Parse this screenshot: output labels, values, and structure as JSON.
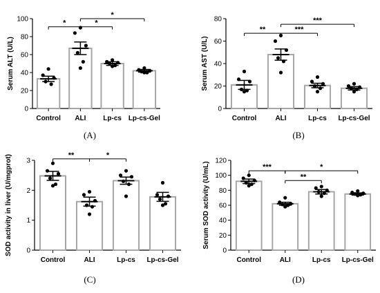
{
  "chart_data": [
    {
      "type": "bar",
      "panel_label": "(A)",
      "ylabel": "Serum ALT (U/L)",
      "ylim": [
        0,
        100
      ],
      "yticks": [
        0,
        20,
        40,
        60,
        80,
        100
      ],
      "categories": [
        "Control",
        "ALI",
        "Lp-cs",
        "Lp-cs-Gel"
      ],
      "values": [
        33,
        67,
        50,
        42
      ],
      "errors": [
        3,
        7,
        2,
        1.5
      ],
      "points": [
        [
          44,
          37,
          34,
          30,
          27
        ],
        [
          90,
          84,
          70,
          62,
          52,
          45
        ],
        [
          54,
          52,
          51,
          50,
          48,
          47
        ],
        [
          45,
          43,
          42,
          41,
          40,
          40
        ]
      ],
      "significance": [
        {
          "from": 0,
          "to": 1,
          "label": "*",
          "y": 91
        },
        {
          "from": 1,
          "to": 2,
          "label": "*",
          "y": 91
        },
        {
          "from": 1,
          "to": 3,
          "label": "*",
          "y": 100
        }
      ]
    },
    {
      "type": "bar",
      "panel_label": "(B)",
      "ylabel": "Serum AST (U/L)",
      "ylim": [
        0,
        80
      ],
      "yticks": [
        0,
        20,
        40,
        60,
        80
      ],
      "categories": [
        "Control",
        "ALI",
        "Lp-cs",
        "Lp-cs-Gel"
      ],
      "values": [
        21,
        48,
        20.5,
        18
      ],
      "errors": [
        4,
        5,
        2,
        1.5
      ],
      "points": [
        [
          33,
          26,
          24,
          17,
          16,
          15
        ],
        [
          65,
          60,
          52,
          45,
          42,
          32
        ],
        [
          28,
          24,
          22,
          20,
          18,
          15
        ],
        [
          22,
          20,
          19,
          18,
          17,
          15
        ]
      ],
      "significance": [
        {
          "from": 0,
          "to": 1,
          "label": "**",
          "y": 67
        },
        {
          "from": 1,
          "to": 2,
          "label": "***",
          "y": 67
        },
        {
          "from": 1,
          "to": 3,
          "label": "***",
          "y": 75
        }
      ]
    },
    {
      "type": "bar",
      "panel_label": "(C)",
      "ylabel": "SOD activity in liver (U/mgprot)",
      "ylim": [
        0,
        3
      ],
      "yticks": [
        0,
        1,
        2,
        3
      ],
      "categories": [
        "Control",
        "ALI",
        "Lp-cs",
        "Lp-cs-Gel"
      ],
      "values": [
        2.48,
        1.62,
        2.32,
        1.78
      ],
      "errors": [
        0.15,
        0.15,
        0.12,
        0.15
      ],
      "points": [
        [
          2.9,
          2.65,
          2.55,
          2.4,
          2.2,
          2.15
        ],
        [
          1.95,
          1.85,
          1.65,
          1.5,
          1.45,
          1.2
        ],
        [
          2.65,
          2.5,
          2.45,
          2.3,
          2.2,
          1.8
        ],
        [
          2.25,
          1.85,
          1.8,
          1.7,
          1.55,
          1.5
        ]
      ],
      "significance": [
        {
          "from": 0,
          "to": 1,
          "label": "**",
          "y": 3.05
        },
        {
          "from": 1,
          "to": 2,
          "label": "*",
          "y": 3.05
        }
      ]
    },
    {
      "type": "bar",
      "panel_label": "(D)",
      "ylabel": "Serum SOD activity (U/mL)",
      "ylim": [
        0,
        120
      ],
      "yticks": [
        0,
        20,
        40,
        60,
        80,
        100,
        120
      ],
      "categories": [
        "Control",
        "ALI",
        "Lp-cs",
        "Lp-cs-Gel"
      ],
      "values": [
        92,
        62,
        78,
        75
      ],
      "errors": [
        3,
        2,
        3,
        1.5
      ],
      "points": [
        [
          100,
          96,
          93,
          90,
          88,
          86
        ],
        [
          70,
          64,
          62,
          61,
          60,
          58
        ],
        [
          85,
          83,
          80,
          78,
          76,
          72
        ],
        [
          79,
          77,
          76,
          75,
          74,
          73
        ]
      ],
      "significance": [
        {
          "from": 0,
          "to": 1,
          "label": "***",
          "y": 106
        },
        {
          "from": 1,
          "to": 2,
          "label": "**",
          "y": 93
        },
        {
          "from": 1,
          "to": 3,
          "label": "*",
          "y": 106
        }
      ]
    }
  ]
}
